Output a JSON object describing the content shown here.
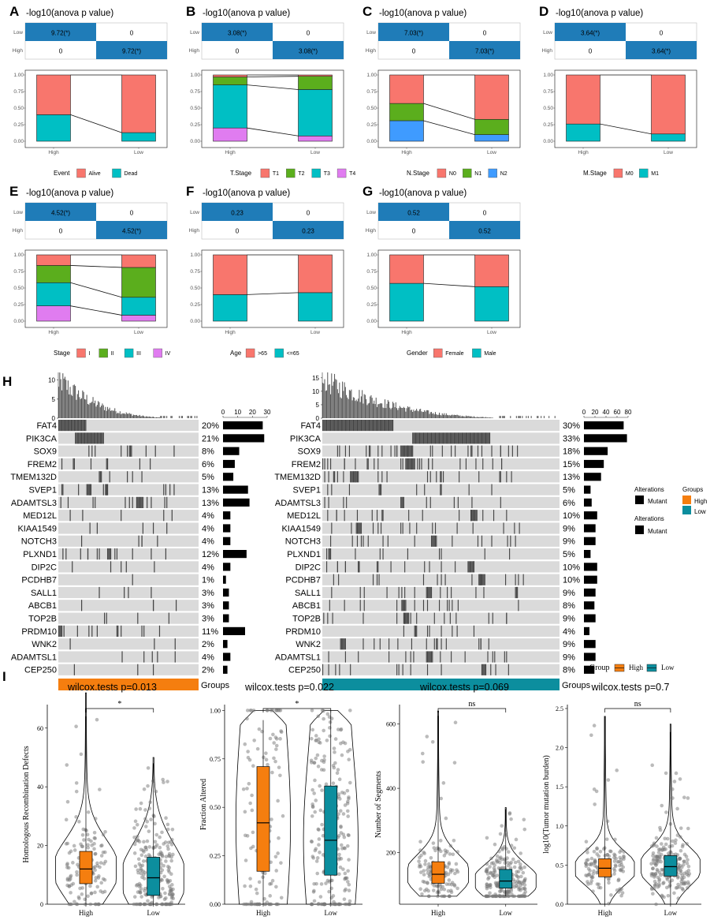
{
  "panel_labels": [
    "A",
    "B",
    "C",
    "D",
    "E",
    "F",
    "G",
    "H",
    "I"
  ],
  "colors": {
    "anova_blue": "#1F7CB8",
    "red": "#F8766D",
    "green": "#5BAE1D",
    "cyan": "#00BFC4",
    "blue": "#3F9BFF",
    "violet": "#E07CF0",
    "high": "#F57E0F",
    "low": "#0C8E9E",
    "mutant": "#444444",
    "bg_gray": "#DADADA"
  },
  "chart_data": [
    {
      "type": "bar",
      "panel": "A",
      "variable": "Event",
      "header": "-log10(anova p value)",
      "matrix_row_labels": [
        "Low",
        "High"
      ],
      "matrix_cells": {
        "diag": "9.72(*)",
        "off": "0"
      },
      "categories": [
        "High",
        "Low"
      ],
      "y_ticks": [
        "0.00",
        "0.25",
        "0.50",
        "0.75",
        "1.00"
      ],
      "legend_title": "Event",
      "series": [
        {
          "name": "Alive",
          "color": "red",
          "values": [
            0.6,
            0.87
          ]
        },
        {
          "name": "Dead",
          "color": "cyan",
          "values": [
            0.4,
            0.13
          ]
        }
      ]
    },
    {
      "type": "bar",
      "panel": "B",
      "variable": "T.Stage",
      "header": "-log10(anova p value)",
      "matrix_row_labels": [
        "Low",
        "High"
      ],
      "matrix_cells": {
        "diag": "3.08(*)",
        "off": "0"
      },
      "categories": [
        "High",
        "Low"
      ],
      "y_ticks": [
        "0.00",
        "0.25",
        "0.50",
        "0.75",
        "1.00"
      ],
      "legend_title": "T.Stage",
      "series": [
        {
          "name": "T1",
          "color": "red",
          "values": [
            0.03,
            0.02
          ]
        },
        {
          "name": "T2",
          "color": "green",
          "values": [
            0.12,
            0.2
          ]
        },
        {
          "name": "T3",
          "color": "cyan",
          "values": [
            0.65,
            0.7
          ]
        },
        {
          "name": "T4",
          "color": "violet",
          "values": [
            0.2,
            0.08
          ]
        }
      ]
    },
    {
      "type": "bar",
      "panel": "C",
      "variable": "N.Stage",
      "header": "-log10(anova p value)",
      "matrix_row_labels": [
        "Low",
        "High"
      ],
      "matrix_cells": {
        "diag": "7.03(*)",
        "off": "0"
      },
      "categories": [
        "High",
        "Low"
      ],
      "y_ticks": [
        "0.00",
        "0.25",
        "0.50",
        "0.75",
        "1.00"
      ],
      "legend_title": "N.Stage",
      "series": [
        {
          "name": "N0",
          "color": "red",
          "values": [
            0.43,
            0.67
          ]
        },
        {
          "name": "N1",
          "color": "green",
          "values": [
            0.26,
            0.23
          ]
        },
        {
          "name": "N2",
          "color": "blue",
          "values": [
            0.31,
            0.1
          ]
        }
      ]
    },
    {
      "type": "bar",
      "panel": "D",
      "variable": "M.Stage",
      "header": "-log10(anova p value)",
      "matrix_row_labels": [
        "Low",
        "High"
      ],
      "matrix_cells": {
        "diag": "3.64(*)",
        "off": "0"
      },
      "categories": [
        "High",
        "Low"
      ],
      "y_ticks": [
        "0.00",
        "0.25",
        "0.50",
        "0.75",
        "1.00"
      ],
      "legend_title": "M.Stage",
      "series": [
        {
          "name": "M0",
          "color": "red",
          "values": [
            0.74,
            0.89
          ]
        },
        {
          "name": "M1",
          "color": "cyan",
          "values": [
            0.26,
            0.11
          ]
        }
      ]
    },
    {
      "type": "bar",
      "panel": "E",
      "variable": "Stage",
      "header": "-log10(anova p value)",
      "matrix_row_labels": [
        "Low",
        "High"
      ],
      "matrix_cells": {
        "diag": "4.52(*)",
        "off": "0"
      },
      "categories": [
        "High",
        "Low"
      ],
      "y_ticks": [
        "0.00",
        "0.25",
        "0.50",
        "0.75",
        "1.00"
      ],
      "legend_title": "Stage",
      "series": [
        {
          "name": "I",
          "color": "red",
          "values": [
            0.16,
            0.19
          ]
        },
        {
          "name": "II",
          "color": "green",
          "values": [
            0.26,
            0.45
          ]
        },
        {
          "name": "III",
          "color": "cyan",
          "values": [
            0.35,
            0.27
          ]
        },
        {
          "name": "IV",
          "color": "violet",
          "values": [
            0.23,
            0.09
          ]
        }
      ]
    },
    {
      "type": "bar",
      "panel": "F",
      "variable": "Age",
      "header": "-log10(anova p value)",
      "matrix_row_labels": [
        "Low",
        "High"
      ],
      "matrix_cells": {
        "diag": "0.23",
        "off": "0"
      },
      "categories": [
        "High",
        "Low"
      ],
      "y_ticks": [
        "0.00",
        "0.25",
        "0.50",
        "0.75",
        "1.00"
      ],
      "legend_title": "Age",
      "series": [
        {
          "name": ">65",
          "color": "red",
          "values": [
            0.6,
            0.57
          ]
        },
        {
          "name": "<=65",
          "color": "cyan",
          "values": [
            0.4,
            0.43
          ]
        }
      ]
    },
    {
      "type": "bar",
      "panel": "G",
      "variable": "Gender",
      "header": "-log10(anova p value)",
      "matrix_row_labels": [
        "Low",
        "High"
      ],
      "matrix_cells": {
        "diag": "0.52",
        "off": "0"
      },
      "categories": [
        "High",
        "Low"
      ],
      "y_ticks": [
        "0.00",
        "0.25",
        "0.50",
        "0.75",
        "1.00"
      ],
      "legend_title": "Gender",
      "series": [
        {
          "name": "Female",
          "color": "red",
          "values": [
            0.43,
            0.48
          ]
        },
        {
          "name": "Male",
          "color": "cyan",
          "values": [
            0.57,
            0.52
          ]
        }
      ]
    },
    {
      "type": "heatmap",
      "panel": "H",
      "title": "Oncoprint",
      "genes": [
        "FAT4",
        "PIK3CA",
        "SOX9",
        "FREM2",
        "TMEM132D",
        "SVEP1",
        "ADAMTSL3",
        "MED12L",
        "KIAA1549",
        "NOTCH3",
        "PLXND1",
        "DIP2C",
        "PCDHB7",
        "SALL1",
        "ABCB1",
        "TOP2B",
        "PRDM10",
        "WNK2",
        "ADAMTSL1",
        "CEP250"
      ],
      "high": {
        "percents": [
          "20%",
          "21%",
          "8%",
          "6%",
          "5%",
          "13%",
          "13%",
          "4%",
          "4%",
          "4%",
          "12%",
          "4%",
          "1%",
          "3%",
          "3%",
          "3%",
          "11%",
          "2%",
          "4%",
          "2%"
        ],
        "counts": [
          27,
          28,
          11,
          8,
          7,
          17,
          18,
          5,
          5,
          5,
          16,
          5,
          2,
          4,
          4,
          4,
          15,
          3,
          5,
          3
        ],
        "count_axis": {
          "max": 30,
          "ticks": [
            "0",
            "10",
            "20",
            "30"
          ]
        },
        "tmb_axis": {
          "max": 12,
          "ticks": [
            "0",
            "5",
            "10"
          ]
        },
        "n_samples": 135,
        "group_label": "Groups"
      },
      "low": {
        "percents": [
          "30%",
          "33%",
          "18%",
          "15%",
          "13%",
          "5%",
          "6%",
          "10%",
          "9%",
          "9%",
          "5%",
          "10%",
          "10%",
          "9%",
          "8%",
          "9%",
          "4%",
          "9%",
          "9%",
          "8%"
        ],
        "counts": [
          72,
          78,
          43,
          36,
          31,
          12,
          14,
          24,
          21,
          21,
          12,
          24,
          24,
          21,
          19,
          21,
          10,
          21,
          21,
          19
        ],
        "count_axis": {
          "max": 80,
          "ticks": [
            "0",
            "20",
            "40",
            "60",
            "80"
          ]
        },
        "tmb_axis": {
          "max": 17,
          "ticks": [
            "0",
            "5",
            "10",
            "15"
          ]
        },
        "n_samples": 240,
        "group_label": "Groups"
      },
      "legend": {
        "alterations_title": "Alterations",
        "mutant_label": "Mutant",
        "groups_title": "Groups",
        "groups": [
          "High",
          "Low"
        ]
      }
    },
    {
      "type": "scatter",
      "panel": "I",
      "subtype": "violin+box",
      "legend": {
        "title": "Group",
        "items": [
          "High",
          "Low"
        ]
      },
      "plots": [
        {
          "title": "wilcox.tests p=0.013",
          "ylabel": "Homologous Recombination Defects",
          "sig": "*",
          "ylim": [
            0,
            68
          ],
          "yticks": [
            0,
            20,
            40,
            60
          ],
          "ytick_labels": [
            "0",
            "20",
            "40",
            "60"
          ],
          "categories": [
            "High",
            "Low"
          ],
          "box": [
            {
              "q1": 7,
              "median": 12,
              "q3": 18
            },
            {
              "q1": 3,
              "median": 9,
              "q3": 16
            }
          ],
          "whisker_max": [
            64,
            48
          ],
          "ref_max": [
            72,
            50
          ]
        },
        {
          "title": "wilcox.tests p=0.022",
          "ylabel": "Fraction Altered",
          "sig": "*",
          "ylim": [
            0,
            1.03
          ],
          "yticks": [
            0,
            0.25,
            0.5,
            0.75,
            1.0
          ],
          "ytick_labels": [
            "0.00",
            "0.25",
            "0.50",
            "0.75",
            "1.00"
          ],
          "categories": [
            "High",
            "Low"
          ],
          "box": [
            {
              "q1": 0.17,
              "median": 0.42,
              "q3": 0.71
            },
            {
              "q1": 0.15,
              "median": 0.33,
              "q3": 0.61
            }
          ],
          "whisker_max": [
            0.95,
            1.0
          ],
          "ref_max": [
            1.0,
            1.0
          ]
        },
        {
          "title": "wilcox.tests p=0.069",
          "ylabel": "Number of Segments",
          "sig": "ns",
          "ylim": [
            40,
            660
          ],
          "yticks": [
            200,
            400,
            600
          ],
          "ytick_labels": [
            "200",
            "400",
            "600"
          ],
          "categories": [
            "High",
            "Low"
          ],
          "box": [
            {
              "q1": 105,
              "median": 133,
              "q3": 172
            },
            {
              "q1": 90,
              "median": 112,
              "q3": 148
            }
          ],
          "whisker_max": [
            625,
            335
          ],
          "ref_max": [
            640,
            340
          ]
        },
        {
          "title": "wilcox.tests p=0.7",
          "ylabel": "log10(Tumor mutation burden)",
          "sig": "ns",
          "ylim": [
            0,
            2.55
          ],
          "yticks": [
            0,
            0.5,
            1.0,
            1.5,
            2.0,
            2.5
          ],
          "ytick_labels": [
            "0.0",
            "0.5",
            "1.0",
            "1.5",
            "2.0",
            "2.5"
          ],
          "categories": [
            "High",
            "Low"
          ],
          "box": [
            {
              "q1": 0.35,
              "median": 0.46,
              "q3": 0.58
            },
            {
              "q1": 0.36,
              "median": 0.48,
              "q3": 0.62
            }
          ],
          "whisker_max": [
            2.4,
            2.2
          ],
          "ref_max": [
            2.4,
            2.3
          ]
        }
      ]
    }
  ]
}
